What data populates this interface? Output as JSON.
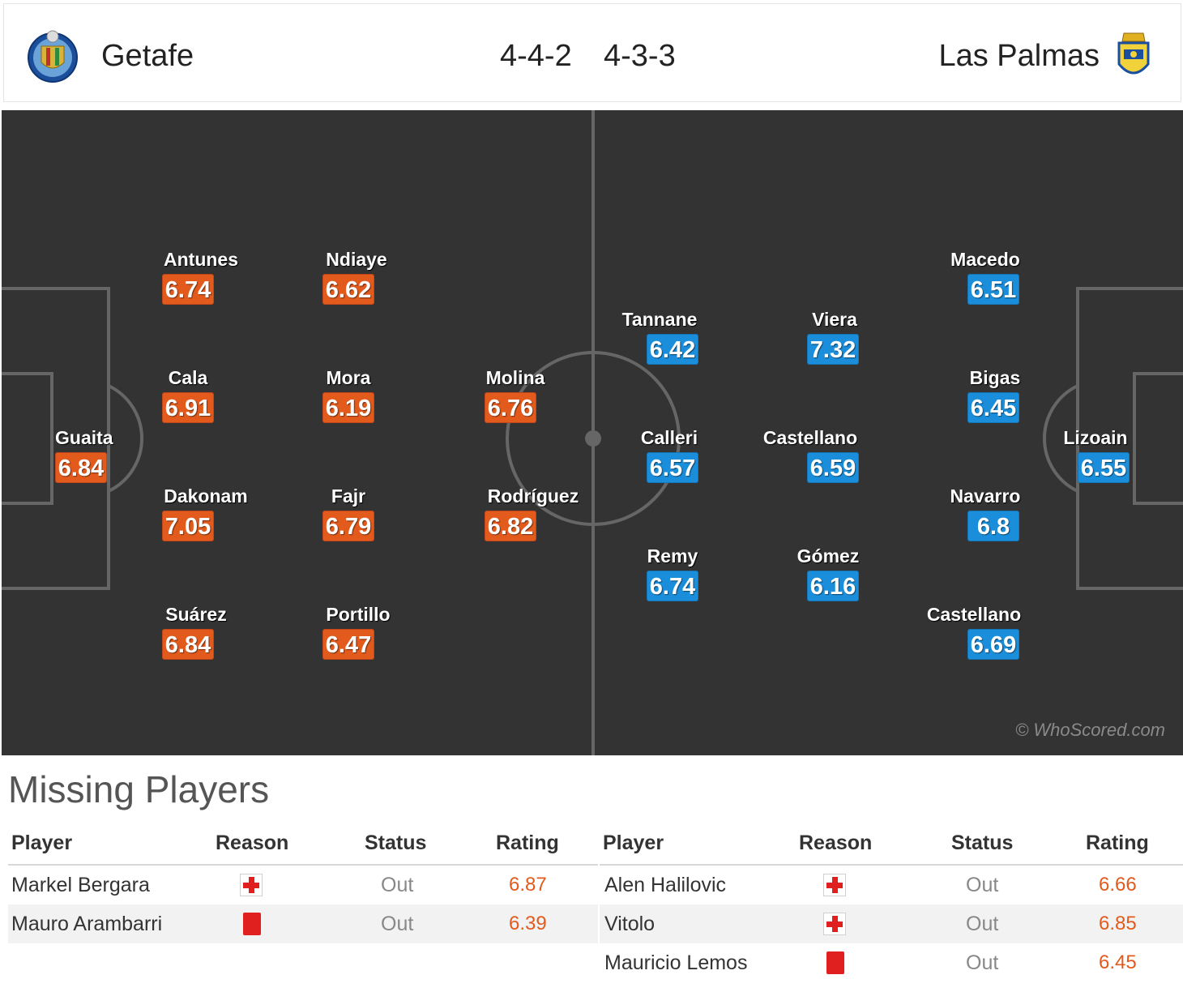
{
  "header": {
    "home_team": "Getafe",
    "away_team": "Las Palmas",
    "home_formation": "4-4-2",
    "away_formation": "4-3-3",
    "home_crest_icon": "getafe-crest-icon",
    "away_crest_icon": "las-palmas-crest-icon"
  },
  "colors": {
    "pitch": "#333333",
    "home_rating": "#e25b1d",
    "away_rating": "#1a8edb",
    "missing_rating": "#e25b1d"
  },
  "home_players": [
    {
      "name": "Guaita",
      "rating": "6.84"
    },
    {
      "name": "Antunes",
      "rating": "6.74"
    },
    {
      "name": "Cala",
      "rating": "6.91"
    },
    {
      "name": "Dakonam",
      "rating": "7.05"
    },
    {
      "name": "Suárez",
      "rating": "6.84"
    },
    {
      "name": "Ndiaye",
      "rating": "6.62"
    },
    {
      "name": "Mora",
      "rating": "6.19"
    },
    {
      "name": "Fajr",
      "rating": "6.79"
    },
    {
      "name": "Portillo",
      "rating": "6.47"
    },
    {
      "name": "Molina",
      "rating": "6.76"
    },
    {
      "name": "Rodríguez",
      "rating": "6.82"
    }
  ],
  "away_players": [
    {
      "name": "Tannane",
      "rating": "6.42"
    },
    {
      "name": "Calleri",
      "rating": "6.57"
    },
    {
      "name": "Remy",
      "rating": "6.74"
    },
    {
      "name": "Viera",
      "rating": "7.32"
    },
    {
      "name": "Castellano",
      "rating": "6.59"
    },
    {
      "name": "Gómez",
      "rating": "6.16"
    },
    {
      "name": "Macedo",
      "rating": "6.51"
    },
    {
      "name": "Bigas",
      "rating": "6.45"
    },
    {
      "name": "Navarro",
      "rating": "6.8"
    },
    {
      "name": "Castellano",
      "rating": "6.69"
    },
    {
      "name": "Lizoain",
      "rating": "6.55"
    }
  ],
  "watermark": "© WhoScored.com",
  "missing": {
    "title": "Missing Players",
    "columns": [
      "Player",
      "Reason",
      "Status",
      "Rating"
    ],
    "home": [
      {
        "player": "Markel Bergara",
        "reason_icon": "injury-icon",
        "status": "Out",
        "rating": "6.87"
      },
      {
        "player": "Mauro Arambarri",
        "reason_icon": "red-card-icon",
        "status": "Out",
        "rating": "6.39"
      }
    ],
    "away": [
      {
        "player": "Alen Halilovic",
        "reason_icon": "injury-icon",
        "status": "Out",
        "rating": "6.66"
      },
      {
        "player": "Vitolo",
        "reason_icon": "injury-icon",
        "status": "Out",
        "rating": "6.85"
      },
      {
        "player": "Mauricio Lemos",
        "reason_icon": "red-card-icon",
        "status": "Out",
        "rating": "6.45"
      }
    ]
  }
}
